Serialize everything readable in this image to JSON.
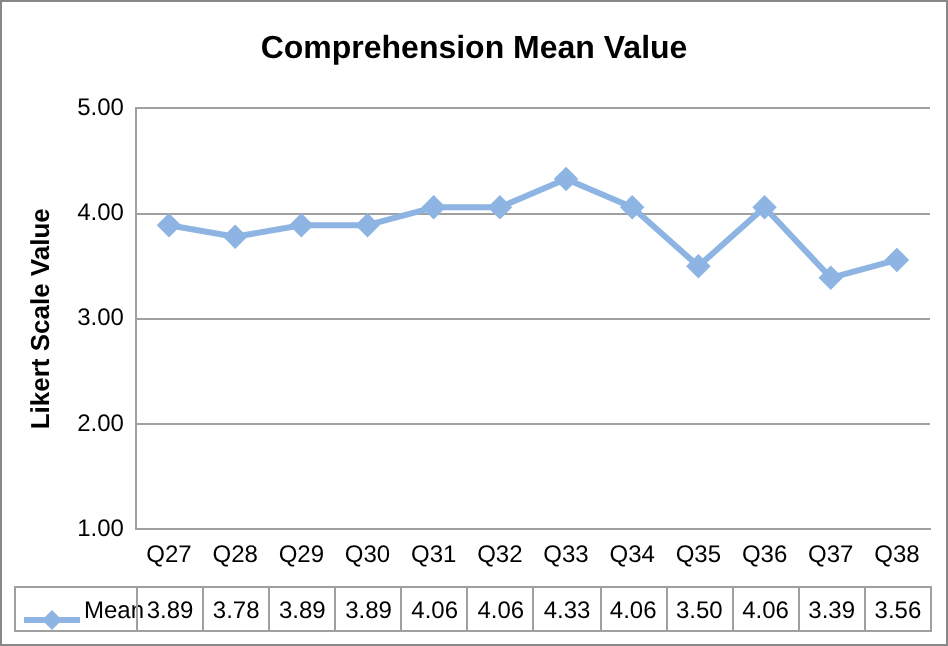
{
  "chart_data": {
    "type": "line",
    "title": "Comprehension Mean Value",
    "ylabel": "Likert Scale Value",
    "categories": [
      "Q27",
      "Q28",
      "Q29",
      "Q30",
      "Q31",
      "Q32",
      "Q33",
      "Q34",
      "Q35",
      "Q36",
      "Q37",
      "Q38"
    ],
    "series": [
      {
        "name": "Mean",
        "color": "#8db4e2",
        "values": [
          3.89,
          3.78,
          3.89,
          3.89,
          4.06,
          4.06,
          4.33,
          4.06,
          3.5,
          4.06,
          3.39,
          3.56
        ],
        "value_labels": [
          "3.89",
          "3.78",
          "3.89",
          "3.89",
          "4.06",
          "4.06",
          "4.33",
          "4.06",
          "3.50",
          "4.06",
          "3.39",
          "3.56"
        ]
      }
    ],
    "ylim": [
      1,
      5
    ],
    "yticks": [
      {
        "value": 1,
        "label": "1.00"
      },
      {
        "value": 2,
        "label": "2.00"
      },
      {
        "value": 3,
        "label": "3.00"
      },
      {
        "value": 4,
        "label": "4.00"
      },
      {
        "value": 5,
        "label": "5.00"
      }
    ],
    "grid": "y",
    "marker": "diamond",
    "line_style": "solid",
    "legend": "bottom"
  }
}
